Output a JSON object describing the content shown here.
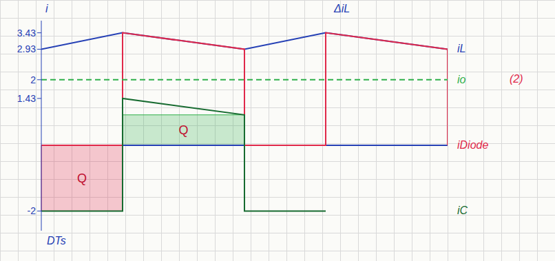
{
  "chart_data": {
    "type": "line",
    "y_label": "i",
    "xlim": [
      0,
      2
    ],
    "ylim": [
      -2.6,
      3.8
    ],
    "yticks": [
      -2,
      1.43,
      2,
      2.93,
      3.43
    ],
    "tick_labels": "y",
    "series": [
      {
        "name": "iL",
        "color": "#2540b5",
        "x": [
          0,
          0.4,
          1.0,
          1.4,
          2.0
        ],
        "values": [
          2.93,
          3.43,
          2.93,
          3.43,
          2.93
        ]
      },
      {
        "name": "iDiode",
        "color": "#e0284a",
        "x": [
          0,
          0.4,
          0.4,
          1.0,
          1.0,
          1.4,
          1.4,
          2.0,
          2.0
        ],
        "values": [
          0,
          0,
          3.43,
          2.93,
          0,
          0,
          3.43,
          2.93,
          0
        ]
      },
      {
        "name": "iC",
        "color": "#176b30",
        "x": [
          0,
          0.4,
          0.4,
          1.0,
          1.0,
          1.4
        ],
        "values": [
          -2,
          -2,
          1.43,
          0.93,
          -2,
          -2
        ]
      },
      {
        "name": "io",
        "color": "#2fb04a",
        "line_style": "dashed",
        "x": [
          0,
          2
        ],
        "values": [
          2,
          2
        ]
      }
    ],
    "annotations": [
      "ΔiL",
      "Q",
      "Q",
      "DTs",
      "(2)"
    ]
  }
}
